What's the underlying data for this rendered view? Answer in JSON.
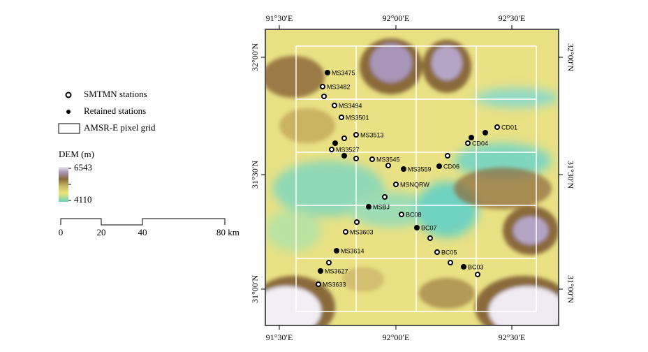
{
  "axes": {
    "top": [
      "91°30′E",
      "92°00′E",
      "92°30′E"
    ],
    "bottom": [
      "91°30′E",
      "92°00′E",
      "92°30′E"
    ],
    "left": [
      "32°00′N",
      "31°30′N",
      "31°00′N"
    ],
    "right": [
      "32°00′N",
      "31°30′N",
      "31°00′N"
    ]
  },
  "legend": {
    "items": [
      "SMTMN stations",
      "Retained stations",
      "AMSR-E pixel grid"
    ],
    "dem_title": "DEM (m)",
    "dem_max": "6543",
    "dem_min": "4110"
  },
  "scale_bar": {
    "labels": [
      "0",
      "20",
      "40",
      "80 km"
    ]
  },
  "stations": [
    "MS3475",
    "MS3482",
    "MS3494",
    "MS3501",
    "MS3513",
    "MS3527",
    "MS3545",
    "MS3559",
    "CD06",
    "CD04",
    "CD01",
    "MSNQRW",
    "MSBJ",
    "BC08",
    "MS3603",
    "BC07",
    "BC05",
    "MS3614",
    "BC03",
    "MS3627",
    "MS3633"
  ]
}
